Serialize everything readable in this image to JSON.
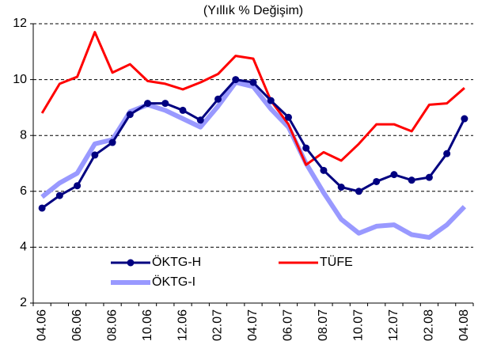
{
  "chart_data": {
    "type": "line",
    "title": "(Yıllık % Değişim)",
    "categories": [
      "04.06",
      null,
      "06.06",
      null,
      "08.06",
      null,
      "10.06",
      null,
      "12.06",
      null,
      "02.07",
      null,
      "04.07",
      null,
      "06.07",
      null,
      "08.07",
      null,
      "10.07",
      null,
      "12.07",
      null,
      "02.08",
      null,
      "04.08"
    ],
    "series": [
      {
        "name": "ÖKTG-H",
        "color": "#000080",
        "marker": true,
        "values": [
          5.4,
          5.85,
          6.2,
          7.3,
          7.75,
          8.75,
          9.15,
          9.15,
          8.9,
          8.55,
          9.3,
          10.0,
          9.9,
          9.25,
          8.65,
          7.55,
          6.75,
          6.15,
          6.0,
          6.35,
          6.6,
          6.4,
          6.5,
          7.35,
          8.6
        ]
      },
      {
        "name": "TÜFE",
        "color": "#ff0000",
        "marker": false,
        "values": [
          8.8,
          9.85,
          10.1,
          11.7,
          10.25,
          10.55,
          9.95,
          9.85,
          9.65,
          9.9,
          10.2,
          10.85,
          10.75,
          9.25,
          8.4,
          6.95,
          7.4,
          7.1,
          7.7,
          8.4,
          8.4,
          8.15,
          9.1,
          9.15,
          9.7
        ]
      },
      {
        "name": "ÖKTG-I",
        "color": "#9999ff",
        "marker": false,
        "values": [
          5.8,
          6.3,
          6.65,
          7.7,
          7.85,
          8.85,
          9.1,
          8.9,
          8.6,
          8.3,
          9.05,
          9.9,
          9.75,
          8.95,
          8.3,
          7.0,
          5.95,
          5.0,
          4.5,
          4.75,
          4.8,
          4.45,
          4.35,
          4.8,
          5.45
        ]
      }
    ],
    "ylim": [
      2,
      12
    ],
    "yticks": [
      2,
      4,
      6,
      8,
      10,
      12
    ],
    "grid": true,
    "legend": "bottom-left"
  }
}
